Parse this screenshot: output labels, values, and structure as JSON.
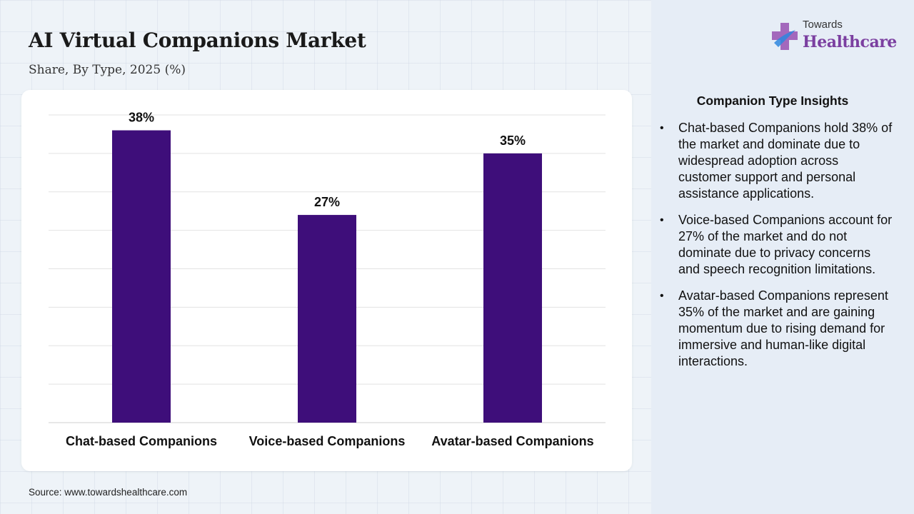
{
  "title": "AI Virtual Companions Market",
  "subtitle": "Share, By Type, 2025 (%)",
  "source": "Source: www.towardshealthcare.com",
  "logo": {
    "small": "Towards",
    "big": "Healthcare"
  },
  "colors": {
    "bar": "#3e0e7a",
    "brand": "#7b3fa0",
    "logo_mark_a": "#9b59b6",
    "logo_mark_b": "#2e86de"
  },
  "chart_data": {
    "type": "bar",
    "categories": [
      "Chat-based Companions",
      "Voice-based Companions",
      "Avatar-based Companions"
    ],
    "values": [
      38,
      27,
      35
    ],
    "value_labels": [
      "38%",
      "27%",
      "35%"
    ],
    "ylim": [
      0,
      40
    ],
    "grid": true,
    "xlabel": "",
    "ylabel": ""
  },
  "insights": {
    "title": "Companion Type Insights",
    "bullet": "•",
    "items": [
      "Chat-based Companions hold 38% of the market and dominate due to widespread adoption across customer support and personal assistance applications.",
      "Voice-based Companions account for 27% of the market and do not dominate due to privacy concerns and speech recognition limitations.",
      "Avatar-based Companions represent 35% of the market and are gaining momentum due to rising demand for immersive and human-like digital interactions."
    ]
  }
}
